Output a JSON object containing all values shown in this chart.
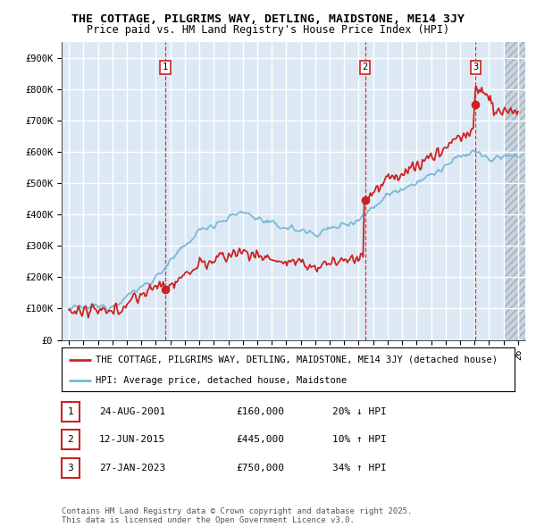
{
  "title": "THE COTTAGE, PILGRIMS WAY, DETLING, MAIDSTONE, ME14 3JY",
  "subtitle": "Price paid vs. HM Land Registry's House Price Index (HPI)",
  "bg_color": "#ffffff",
  "plot_bg_color": "#dce9f5",
  "hatch_bg_color": "#c8d8e8",
  "grid_color": "#ffffff",
  "ytick_labels": [
    "£0",
    "£100K",
    "£200K",
    "£300K",
    "£400K",
    "£500K",
    "£600K",
    "£700K",
    "£800K",
    "£900K"
  ],
  "yticks": [
    0,
    100000,
    200000,
    300000,
    400000,
    500000,
    600000,
    700000,
    800000,
    900000
  ],
  "xmin": 1994.5,
  "xmax": 2026.5,
  "ymin": 0,
  "ymax": 950000,
  "hpi_color": "#7ab8d9",
  "price_color": "#cc2222",
  "vline_color": "#cc2222",
  "transaction_dates": [
    2001.646,
    2015.442,
    2023.073
  ],
  "transaction_prices": [
    160000,
    445000,
    750000
  ],
  "transaction_labels": [
    "1",
    "2",
    "3"
  ],
  "legend_label_price": "THE COTTAGE, PILGRIMS WAY, DETLING, MAIDSTONE, ME14 3JY (detached house)",
  "legend_label_hpi": "HPI: Average price, detached house, Maidstone",
  "table_rows": [
    {
      "num": "1",
      "date": "24-AUG-2001",
      "price": "£160,000",
      "change": "20% ↓ HPI"
    },
    {
      "num": "2",
      "date": "12-JUN-2015",
      "price": "£445,000",
      "change": "10% ↑ HPI"
    },
    {
      "num": "3",
      "date": "27-JAN-2023",
      "price": "£750,000",
      "change": "34% ↑ HPI"
    }
  ],
  "footer": "Contains HM Land Registry data © Crown copyright and database right 2025.\nThis data is licensed under the Open Government Licence v3.0.",
  "title_fontsize": 9.5,
  "subtitle_fontsize": 8.5,
  "tick_fontsize": 7.5,
  "legend_fontsize": 7.5,
  "table_fontsize": 8,
  "footer_fontsize": 6.5
}
